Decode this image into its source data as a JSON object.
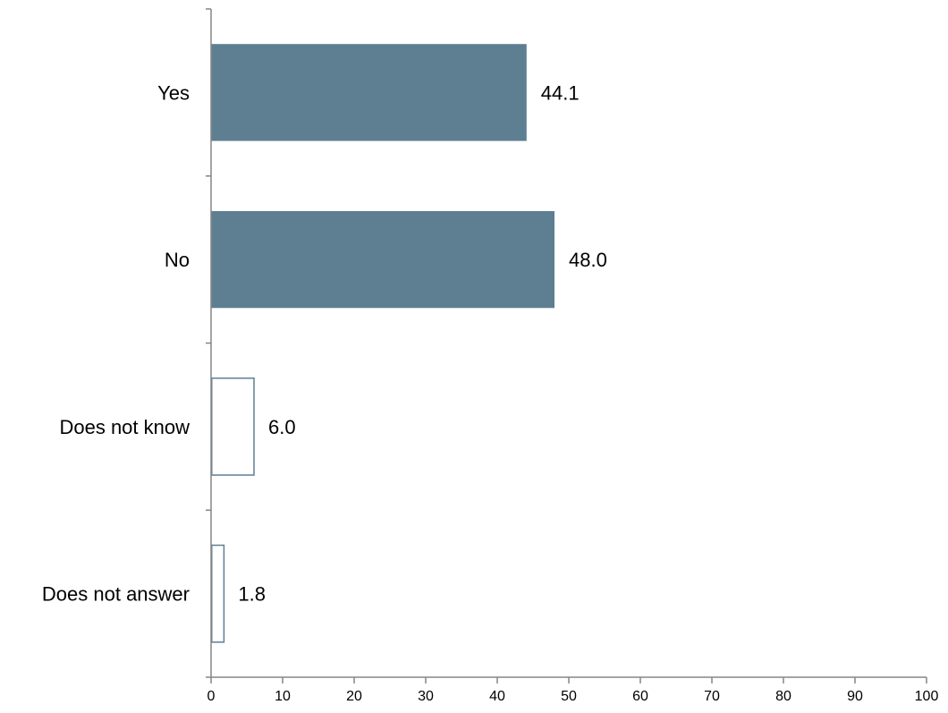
{
  "chart_data": {
    "type": "bar",
    "orientation": "horizontal",
    "title": "",
    "xlabel": "",
    "ylabel": "",
    "categories": [
      "Yes",
      "No",
      "Does not know",
      "Does not answer"
    ],
    "values": [
      44.1,
      48.0,
      6.0,
      1.8
    ],
    "value_labels": [
      "44.1",
      "48.0",
      "6.0",
      "1.8"
    ],
    "bar_styles": [
      "filled",
      "filled",
      "outline",
      "outline"
    ],
    "xlim": [
      0,
      100
    ],
    "xticks": [
      0,
      10,
      20,
      30,
      40,
      50,
      60,
      70,
      80,
      90,
      100
    ],
    "xtick_labels": [
      "0",
      "10",
      "20",
      "30",
      "40",
      "50",
      "60",
      "70",
      "80",
      "90",
      "100"
    ],
    "grid": false,
    "legend": "none",
    "colors": {
      "bar_fill": "#5e7e91",
      "bar_outline": "#5e7e91",
      "axis": "#868686",
      "text": "#000000"
    }
  }
}
